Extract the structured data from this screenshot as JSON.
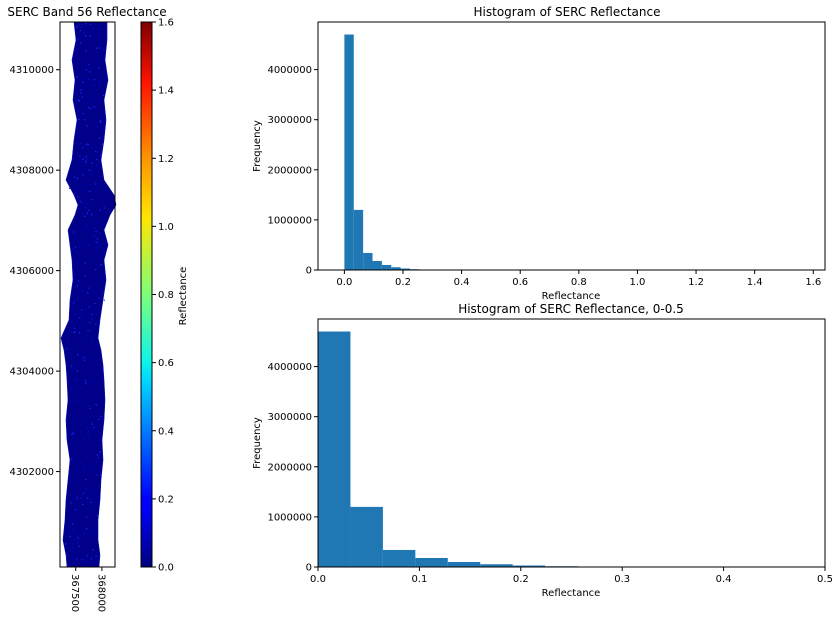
{
  "chart_data": [
    {
      "type": "heatmap",
      "title": "SERC Band 56 Reflectance",
      "xlabel": "",
      "ylabel": "",
      "x_ticks": [
        367500,
        368000
      ],
      "x_tick_labels": [
        "367500",
        "368000"
      ],
      "y_ticks": [
        4302000,
        4304000,
        4306000,
        4308000,
        4310000
      ],
      "y_tick_labels": [
        "4302000",
        "4304000",
        "4306000",
        "4308000",
        "4310000"
      ],
      "xlim": [
        367200,
        368250
      ],
      "ylim": [
        4300100,
        4310950
      ],
      "colormap": "jet",
      "colorbar": {
        "label": "Reflectance",
        "range": [
          0,
          1.6
        ],
        "ticks": [
          0.0,
          0.2,
          0.4,
          0.6,
          0.8,
          1.0,
          1.2,
          1.4,
          1.6
        ],
        "tick_labels": [
          "0.0",
          "0.2",
          "0.4",
          "0.6",
          "0.8",
          "1.0",
          "1.2",
          "1.4",
          "1.6"
        ]
      }
    },
    {
      "type": "bar",
      "title": "Histogram of SERC Reflectance",
      "xlabel": "Reflectance",
      "ylabel": "Frequency",
      "xlim": [
        -0.09,
        1.64
      ],
      "ylim": [
        0,
        4950000
      ],
      "x_ticks": [
        0.0,
        0.2,
        0.4,
        0.6,
        0.8,
        1.0,
        1.2,
        1.4,
        1.6
      ],
      "x_tick_labels": [
        "0.0",
        "0.2",
        "0.4",
        "0.6",
        "0.8",
        "1.0",
        "1.2",
        "1.4",
        "1.6"
      ],
      "y_ticks": [
        0,
        1000000,
        2000000,
        3000000,
        4000000
      ],
      "y_tick_labels": [
        "0",
        "1000000",
        "2000000",
        "3000000",
        "4000000"
      ],
      "bar_color": "#1f77b4",
      "bin_edges": [
        0,
        0.032,
        0.064,
        0.096,
        0.128,
        0.16,
        0.192,
        0.224,
        0.256,
        0.288,
        0.32,
        0.352,
        0.384,
        0.416,
        0.448,
        0.48,
        0.512,
        0.544,
        0.576,
        0.608,
        0.64,
        0.672,
        0.704,
        0.736,
        0.768,
        0.8,
        0.832,
        0.864,
        0.896,
        0.928,
        0.96,
        0.992,
        1.024,
        1.056,
        1.088,
        1.12,
        1.152,
        1.184,
        1.216,
        1.248,
        1.28,
        1.312,
        1.344,
        1.376,
        1.408,
        1.44,
        1.472,
        1.504,
        1.536,
        1.568,
        1.6
      ],
      "values": [
        4700000,
        1200000,
        340000,
        180000,
        100000,
        55000,
        30000,
        15000,
        8000,
        4000,
        2000,
        1000,
        500,
        300,
        200,
        150,
        100,
        80,
        60,
        50,
        40,
        30,
        25,
        20,
        15,
        12,
        10,
        8,
        6,
        5,
        4,
        3,
        3,
        2,
        2,
        2,
        1,
        1,
        1,
        1,
        1,
        1,
        1,
        1,
        1,
        1,
        1,
        1,
        1,
        1
      ]
    },
    {
      "type": "bar",
      "title": "Histogram of SERC Reflectance, 0-0.5",
      "xlabel": "Reflectance",
      "ylabel": "Frequency",
      "xlim": [
        0,
        0.5
      ],
      "ylim": [
        0,
        4950000
      ],
      "x_ticks": [
        0.0,
        0.1,
        0.2,
        0.3,
        0.4,
        0.5
      ],
      "x_tick_labels": [
        "0.0",
        "0.1",
        "0.2",
        "0.3",
        "0.4",
        "0.5"
      ],
      "y_ticks": [
        0,
        1000000,
        2000000,
        3000000,
        4000000
      ],
      "y_tick_labels": [
        "0",
        "1000000",
        "2000000",
        "3000000",
        "4000000"
      ],
      "bar_color": "#1f77b4",
      "bin_edges": [
        0,
        0.032,
        0.064,
        0.096,
        0.128,
        0.16,
        0.192,
        0.224,
        0.256,
        0.288,
        0.32,
        0.352,
        0.384,
        0.416,
        0.448,
        0.48,
        0.512
      ],
      "values": [
        4700000,
        1200000,
        340000,
        180000,
        100000,
        55000,
        30000,
        15000,
        8000,
        4000,
        2000,
        1000,
        500,
        300,
        200,
        150
      ]
    }
  ]
}
